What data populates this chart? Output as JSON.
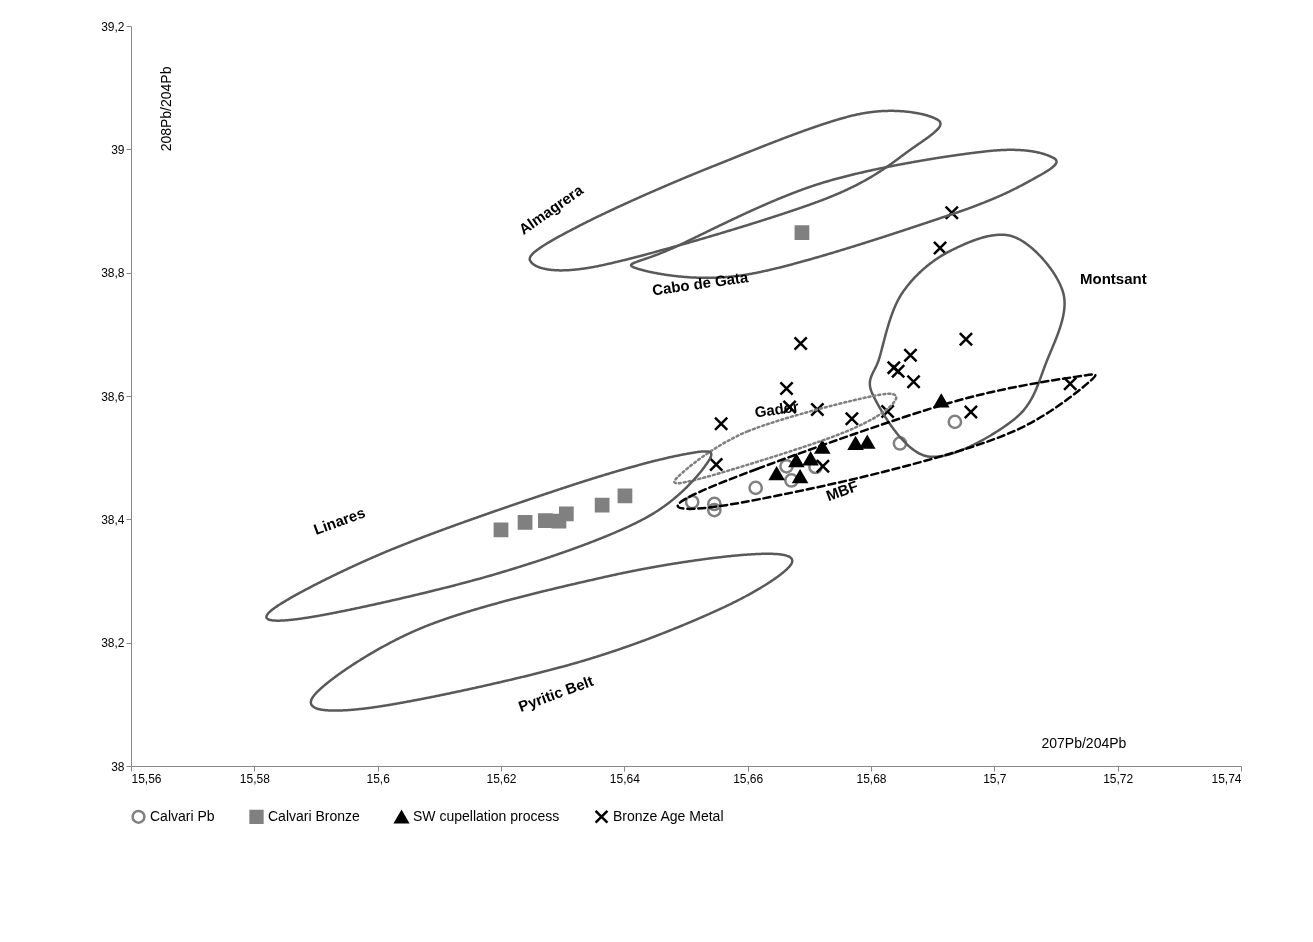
{
  "chart_data": {
    "type": "scatter",
    "xlabel": "207Pb/204Pb",
    "ylabel": "208Pb/204Pb",
    "xlim": [
      15.56,
      15.74
    ],
    "ylim": [
      38,
      39.2
    ],
    "xticks": [
      {
        "value": 15.56,
        "label": "15,56"
      },
      {
        "value": 15.58,
        "label": "15,58"
      },
      {
        "value": 15.6,
        "label": "15,6"
      },
      {
        "value": 15.62,
        "label": "15,62"
      },
      {
        "value": 15.64,
        "label": "15,64"
      },
      {
        "value": 15.66,
        "label": "15,66"
      },
      {
        "value": 15.68,
        "label": "15,68"
      },
      {
        "value": 15.7,
        "label": "15,7"
      },
      {
        "value": 15.72,
        "label": "15,72"
      },
      {
        "value": 15.74,
        "label": "15,74"
      }
    ],
    "yticks": [
      38,
      {
        "value": 38.2,
        "label": "38,2"
      },
      {
        "value": 38.4,
        "label": "38,4"
      },
      {
        "value": 38.6,
        "label": "38,6"
      },
      {
        "value": 38.8,
        "label": "38,8"
      },
      39,
      {
        "value": 39.2,
        "label": "39,2"
      }
    ],
    "grid": false,
    "legend": "bottom",
    "series": [
      {
        "name": "Calvari Pb",
        "color": "#808080",
        "marker": "circle",
        "x": [
          15.651,
          15.6546,
          15.6546,
          15.6613,
          15.6663,
          15.6671,
          15.671,
          15.6847,
          15.6936
        ],
        "values": [
          38.428,
          38.425,
          38.415,
          38.451,
          38.486,
          38.463,
          38.485,
          38.523,
          38.558
        ]
      },
      {
        "name": "Calvari Bronze",
        "color": "#808080",
        "marker": "square",
        "x": [
          15.62,
          15.6239,
          15.6272,
          15.6294,
          15.6306,
          15.6364,
          15.6401,
          15.6688
        ],
        "values": [
          38.383,
          38.395,
          38.398,
          38.397,
          38.409,
          38.423,
          38.438,
          38.865
        ]
      },
      {
        "name": "SW cupellation process",
        "color": "#000000",
        "marker": "triangle",
        "x": [
          15.6647,
          15.6679,
          15.6685,
          15.6702,
          15.6721,
          15.6775,
          15.6794,
          15.6914
        ],
        "values": [
          38.474,
          38.495,
          38.469,
          38.498,
          38.517,
          38.523,
          38.525,
          38.592
        ]
      },
      {
        "name": "Bronze Age Metal",
        "color": "#000000",
        "marker": "cross",
        "x": [
          15.6931,
          15.6912,
          15.6686,
          15.6954,
          15.6864,
          15.6844,
          15.6837,
          15.6869,
          15.6663,
          15.6668,
          15.6713,
          15.6557,
          15.6769,
          15.6827,
          15.6962,
          15.7123,
          15.6549,
          15.6722
        ],
        "values": [
          38.897,
          38.84,
          38.685,
          38.692,
          38.666,
          38.64,
          38.646,
          38.623,
          38.612,
          38.582,
          38.578,
          38.555,
          38.563,
          38.575,
          38.574,
          38.62,
          38.489,
          38.486
        ]
      }
    ],
    "annotations": [
      "Almagrera",
      "Cabo de Gata",
      "Montsant",
      "Gador",
      "MBF",
      "Linares",
      "Pyritic Belt"
    ]
  }
}
